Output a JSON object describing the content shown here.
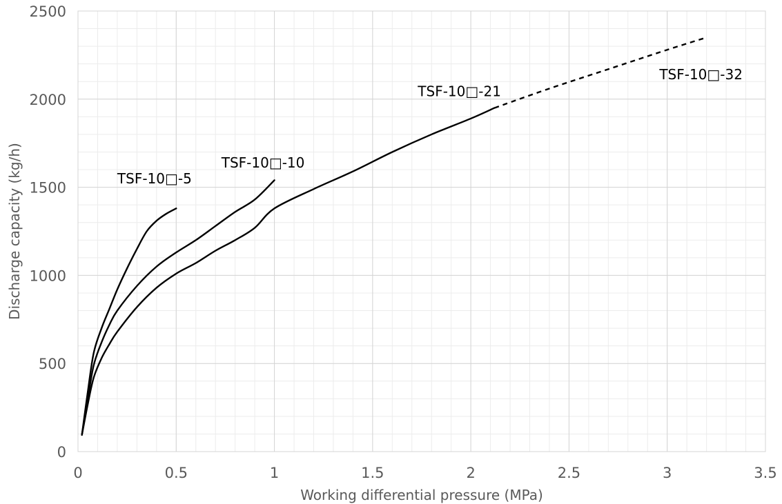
{
  "chart_data": {
    "type": "line",
    "xlabel": "Working differential pressure (MPa)",
    "ylabel": "Discharge capacity (kg/h)",
    "xlim": [
      0,
      3.5
    ],
    "ylim": [
      0,
      2500
    ],
    "x_ticks": [
      0,
      0.5,
      1,
      1.5,
      2,
      2.5,
      3,
      3.5
    ],
    "x_tick_labels": [
      "0",
      "0.5",
      "1",
      "1.5",
      "2",
      "2.5",
      "3",
      "3.5"
    ],
    "y_ticks": [
      0,
      500,
      1000,
      1500,
      2000,
      2500
    ],
    "y_tick_labels": [
      "0",
      "500",
      "1000",
      "1500",
      "2000",
      "2500"
    ],
    "grid": true,
    "minor_grid": {
      "x_step": 0.1,
      "y_step": 100
    },
    "legend": "none",
    "series": [
      {
        "name": "TSF-10□-5",
        "style": "solid",
        "points": [
          [
            0.02,
            95
          ],
          [
            0.05,
            340
          ],
          [
            0.08,
            560
          ],
          [
            0.12,
            700
          ],
          [
            0.16,
            810
          ],
          [
            0.2,
            920
          ],
          [
            0.25,
            1040
          ],
          [
            0.3,
            1150
          ],
          [
            0.35,
            1250
          ],
          [
            0.4,
            1310
          ],
          [
            0.45,
            1350
          ],
          [
            0.5,
            1380
          ]
        ]
      },
      {
        "name": "TSF-10□-10",
        "style": "solid",
        "points": [
          [
            0.02,
            95
          ],
          [
            0.05,
            300
          ],
          [
            0.08,
            490
          ],
          [
            0.12,
            620
          ],
          [
            0.16,
            720
          ],
          [
            0.2,
            800
          ],
          [
            0.3,
            940
          ],
          [
            0.4,
            1050
          ],
          [
            0.5,
            1130
          ],
          [
            0.6,
            1200
          ],
          [
            0.7,
            1280
          ],
          [
            0.8,
            1360
          ],
          [
            0.9,
            1430
          ],
          [
            1.0,
            1540
          ]
        ]
      },
      {
        "name": "TSF-10□-21",
        "style": "solid",
        "points": [
          [
            0.02,
            95
          ],
          [
            0.05,
            270
          ],
          [
            0.08,
            420
          ],
          [
            0.12,
            530
          ],
          [
            0.16,
            610
          ],
          [
            0.2,
            680
          ],
          [
            0.3,
            820
          ],
          [
            0.4,
            930
          ],
          [
            0.5,
            1010
          ],
          [
            0.6,
            1070
          ],
          [
            0.7,
            1140
          ],
          [
            0.8,
            1200
          ],
          [
            0.9,
            1270
          ],
          [
            1.0,
            1380
          ],
          [
            1.2,
            1490
          ],
          [
            1.4,
            1590
          ],
          [
            1.6,
            1700
          ],
          [
            1.8,
            1800
          ],
          [
            2.0,
            1890
          ],
          [
            2.12,
            1950
          ]
        ]
      },
      {
        "name": "TSF-10□-32",
        "style": "dashed",
        "points": [
          [
            2.12,
            1950
          ],
          [
            2.4,
            2060
          ],
          [
            2.7,
            2170
          ],
          [
            3.0,
            2280
          ],
          [
            3.2,
            2350
          ]
        ]
      }
    ],
    "annotations": [
      {
        "text": "TSF-10□-5",
        "x": 0.2,
        "y": 1550
      },
      {
        "text": "TSF-10□-10",
        "x": 0.73,
        "y": 1640
      },
      {
        "text": "TSF-10□-21",
        "x": 1.73,
        "y": 2045
      },
      {
        "text": "TSF-10□-32",
        "x": 2.96,
        "y": 2140
      }
    ]
  }
}
